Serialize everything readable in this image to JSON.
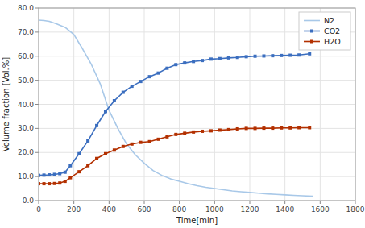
{
  "chart_data": {
    "type": "line",
    "title": "",
    "x_label": "Time[min]",
    "y_label": "Volume fraction [Vol.%]",
    "xlim": [
      0,
      1800
    ],
    "ylim": [
      0.0,
      80.0
    ],
    "xticks": [
      0,
      200,
      400,
      600,
      800,
      1000,
      1200,
      1400,
      1600,
      1800
    ],
    "yticks": [
      {
        "value": 0.0,
        "label": "0.0"
      },
      {
        "value": 10.0,
        "label": "10.0"
      },
      {
        "value": 20.0,
        "label": "20.0"
      },
      {
        "value": 30.0,
        "label": "30.0"
      },
      {
        "value": 40.0,
        "label": "40.0"
      },
      {
        "value": 50.0,
        "label": "50.0"
      },
      {
        "value": 60.0,
        "label": "60.0"
      },
      {
        "value": 70.0,
        "label": "70.0"
      },
      {
        "value": 80.0,
        "label": "80.0"
      }
    ],
    "grid": true,
    "legend": "top-right",
    "series": [
      {
        "name": "N2",
        "color": "#A8C8E8",
        "marker": "none",
        "x": [
          0,
          30,
          60,
          100,
          150,
          200,
          250,
          300,
          350,
          400,
          450,
          500,
          550,
          600,
          650,
          700,
          750,
          800,
          850,
          900,
          950,
          1000,
          1050,
          1100,
          1150,
          1200,
          1250,
          1300,
          1350,
          1400,
          1450,
          1500,
          1560
        ],
        "values": [
          75.0,
          74.8,
          74.5,
          73.5,
          72.0,
          69.0,
          63.0,
          56.5,
          48.5,
          37.5,
          30.0,
          23.5,
          19.0,
          15.5,
          12.5,
          10.5,
          9.0,
          8.0,
          7.0,
          6.2,
          5.5,
          5.0,
          4.5,
          4.0,
          3.7,
          3.4,
          3.1,
          2.8,
          2.6,
          2.4,
          2.2,
          2.0,
          1.8
        ]
      },
      {
        "name": "CO2",
        "color": "#3B6EBF",
        "marker": "square",
        "x": [
          0,
          30,
          60,
          90,
          120,
          150,
          180,
          230,
          280,
          330,
          380,
          430,
          480,
          530,
          580,
          630,
          680,
          730,
          780,
          830,
          880,
          930,
          980,
          1030,
          1080,
          1130,
          1180,
          1230,
          1280,
          1330,
          1380,
          1430,
          1480,
          1540
        ],
        "values": [
          10.5,
          10.6,
          10.7,
          10.9,
          11.2,
          11.8,
          14.5,
          19.5,
          24.8,
          31.2,
          37.0,
          41.5,
          45.0,
          47.5,
          49.5,
          51.5,
          53.0,
          55.0,
          56.5,
          57.2,
          57.8,
          58.2,
          58.8,
          59.0,
          59.3,
          59.5,
          59.8,
          60.0,
          60.1,
          60.2,
          60.3,
          60.4,
          60.5,
          61.0
        ]
      },
      {
        "name": "H2O",
        "color": "#B33000",
        "marker": "square",
        "x": [
          0,
          30,
          60,
          90,
          120,
          150,
          180,
          230,
          280,
          330,
          380,
          430,
          480,
          530,
          580,
          630,
          680,
          730,
          780,
          830,
          880,
          930,
          980,
          1030,
          1080,
          1130,
          1180,
          1230,
          1280,
          1330,
          1380,
          1430,
          1480,
          1540
        ],
        "values": [
          7.0,
          7.0,
          7.0,
          7.1,
          7.3,
          8.0,
          9.5,
          12.0,
          14.5,
          17.5,
          19.5,
          21.0,
          22.5,
          23.5,
          24.2,
          24.5,
          25.5,
          26.5,
          27.5,
          28.0,
          28.5,
          28.8,
          29.0,
          29.3,
          29.5,
          29.8,
          30.0,
          30.0,
          30.1,
          30.1,
          30.2,
          30.2,
          30.3,
          30.3
        ]
      }
    ]
  }
}
